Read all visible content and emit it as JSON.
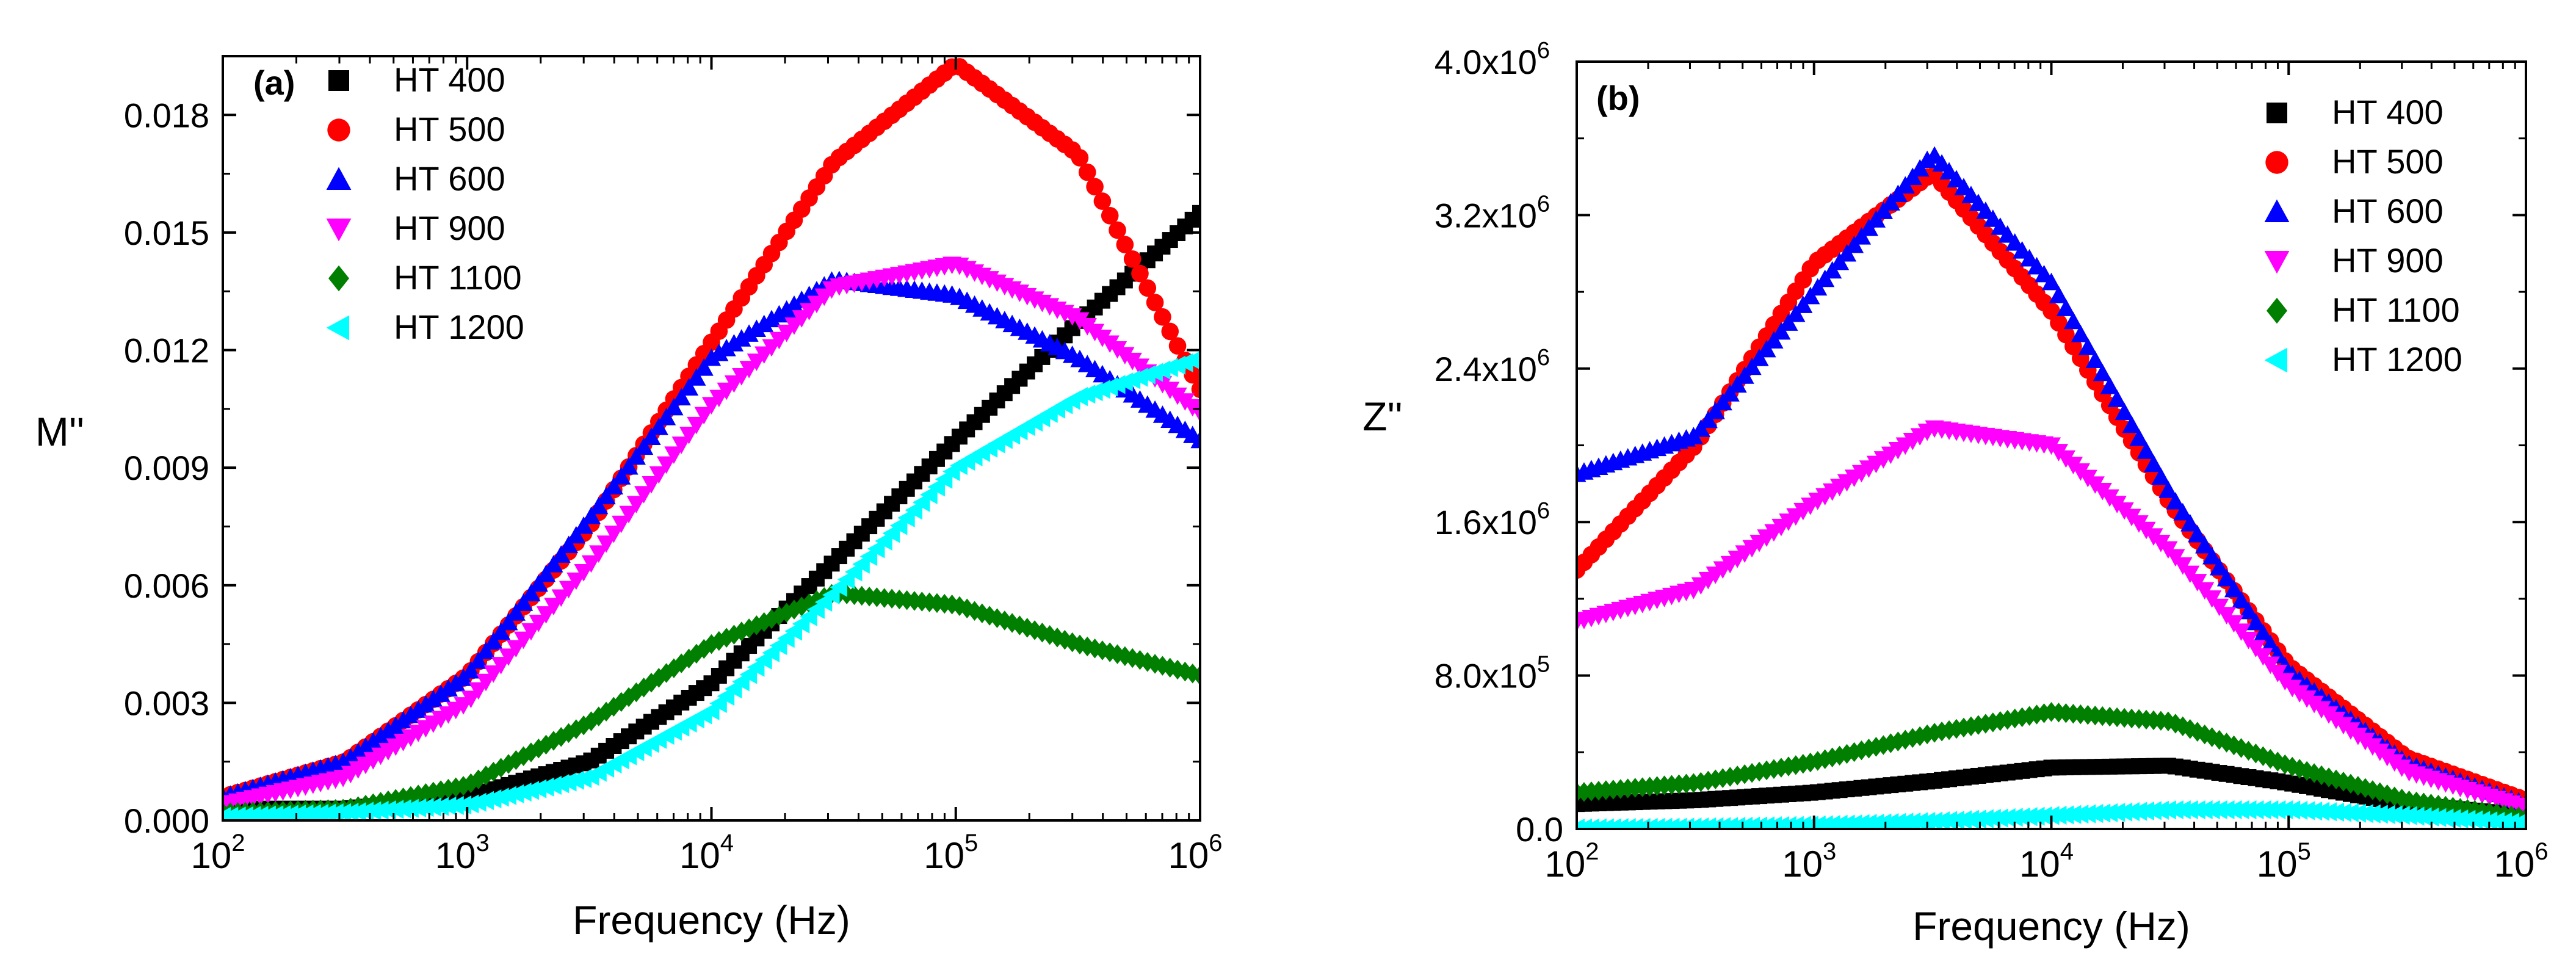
{
  "chart_data": [
    {
      "type": "scatter",
      "panel_label": "(a)",
      "xlabel": "Frequency (Hz)",
      "ylabel": "M''",
      "xscale": "log",
      "xlim": [
        100,
        1000000
      ],
      "ylim": [
        0,
        0.0195
      ],
      "x_ticks": [
        {
          "base": "10",
          "exp": "2",
          "value": 100
        },
        {
          "base": "10",
          "exp": "3",
          "value": 1000
        },
        {
          "base": "10",
          "exp": "4",
          "value": 10000
        },
        {
          "base": "10",
          "exp": "5",
          "value": 100000
        },
        {
          "base": "10",
          "exp": "6",
          "value": 1000000
        }
      ],
      "y_ticks": [
        {
          "label": "0.000",
          "value": 0
        },
        {
          "label": "0.003",
          "value": 0.003
        },
        {
          "label": "0.006",
          "value": 0.006
        },
        {
          "label": "0.009",
          "value": 0.009
        },
        {
          "label": "0.012",
          "value": 0.012
        },
        {
          "label": "0.015",
          "value": 0.015
        },
        {
          "label": "0.018",
          "value": 0.018
        }
      ],
      "legend_position": "top-left",
      "series": [
        {
          "name": "HT 400",
          "color": "#000000",
          "marker": "square",
          "x": [
            100,
            316,
            1000,
            3162,
            10000,
            31623,
            100000,
            316228,
            1000000
          ],
          "y": [
            0.0003,
            0.0003,
            0.0006,
            0.0015,
            0.0035,
            0.0066,
            0.0097,
            0.0127,
            0.0155
          ]
        },
        {
          "name": "HT 500",
          "color": "#ff0000",
          "marker": "circle",
          "x": [
            100,
            316,
            1000,
            3162,
            10000,
            31623,
            100000,
            316228,
            1000000
          ],
          "y": [
            0.0006,
            0.0015,
            0.0037,
            0.0075,
            0.0122,
            0.0168,
            0.0193,
            0.017,
            0.011
          ]
        },
        {
          "name": "HT 600",
          "color": "#0000ff",
          "marker": "triangle-up",
          "x": [
            100,
            316,
            1000,
            3162,
            10000,
            31623,
            100000,
            316228,
            1000000
          ],
          "y": [
            0.0006,
            0.0015,
            0.0037,
            0.0077,
            0.0118,
            0.0138,
            0.0134,
            0.0118,
            0.0097
          ]
        },
        {
          "name": "HT 900",
          "color": "#ff00ff",
          "marker": "triangle-down",
          "x": [
            100,
            316,
            1000,
            3162,
            10000,
            31623,
            100000,
            316228,
            1000000
          ],
          "y": [
            0.0004,
            0.0011,
            0.003,
            0.0065,
            0.0106,
            0.0136,
            0.0142,
            0.0128,
            0.0104
          ]
        },
        {
          "name": "HT 1100",
          "color": "#007f00",
          "marker": "diamond",
          "x": [
            100,
            316,
            1000,
            3162,
            10000,
            31623,
            100000,
            316228,
            1000000
          ],
          "y": [
            0.0002,
            0.0003,
            0.0009,
            0.0025,
            0.0045,
            0.0058,
            0.0055,
            0.0045,
            0.0037
          ]
        },
        {
          "name": "HT 1200",
          "color": "#00ffff",
          "marker": "triangle-left",
          "x": [
            100,
            316,
            1000,
            3162,
            10000,
            31623,
            100000,
            316228,
            1000000
          ],
          "y": [
            0.0001,
            0.0002,
            0.0004,
            0.0011,
            0.0028,
            0.0058,
            0.009,
            0.0108,
            0.0118
          ]
        }
      ]
    },
    {
      "type": "scatter",
      "panel_label": "(b)",
      "xlabel": "Frequency (Hz)",
      "ylabel": "Z''",
      "xscale": "log",
      "xlim": [
        100,
        1000000
      ],
      "ylim": [
        0,
        4000000
      ],
      "x_ticks": [
        {
          "base": "10",
          "exp": "2",
          "value": 100
        },
        {
          "base": "10",
          "exp": "3",
          "value": 1000
        },
        {
          "base": "10",
          "exp": "4",
          "value": 10000
        },
        {
          "base": "10",
          "exp": "5",
          "value": 100000
        },
        {
          "base": "10",
          "exp": "6",
          "value": 1000000
        }
      ],
      "y_ticks": [
        {
          "label": "0.0",
          "exp": "",
          "value": 0
        },
        {
          "label": "8.0x10",
          "exp": "5",
          "value": 800000
        },
        {
          "label": "1.6x10",
          "exp": "6",
          "value": 1600000
        },
        {
          "label": "2.4x10",
          "exp": "6",
          "value": 2400000
        },
        {
          "label": "3.2x10",
          "exp": "6",
          "value": 3200000
        },
        {
          "label": "4.0x10",
          "exp": "6",
          "value": 4000000
        }
      ],
      "legend_position": "top-right",
      "series": [
        {
          "name": "HT 400",
          "color": "#000000",
          "marker": "square",
          "x": [
            100,
            316,
            1000,
            3162,
            10000,
            31623,
            100000,
            316228,
            1000000
          ],
          "y": [
            130000,
            150000,
            190000,
            250000,
            320000,
            330000,
            240000,
            130000,
            70000
          ]
        },
        {
          "name": "HT 500",
          "color": "#ff0000",
          "marker": "circle",
          "x": [
            100,
            316,
            1000,
            3162,
            10000,
            31623,
            100000,
            316228,
            1000000
          ],
          "y": [
            1350000,
            2000000,
            2950000,
            3420000,
            2700000,
            1700000,
            850000,
            370000,
            150000
          ]
        },
        {
          "name": "HT 600",
          "color": "#0000ff",
          "marker": "triangle-up",
          "x": [
            100,
            316,
            1000,
            3162,
            10000,
            31623,
            100000,
            316228,
            1000000
          ],
          "y": [
            1850000,
            2050000,
            2800000,
            3520000,
            2850000,
            1750000,
            820000,
            340000,
            130000
          ]
        },
        {
          "name": "HT 900",
          "color": "#ff00ff",
          "marker": "triangle-down",
          "x": [
            100,
            316,
            1000,
            3162,
            10000,
            31623,
            100000,
            316228,
            1000000
          ],
          "y": [
            1080000,
            1250000,
            1700000,
            2090000,
            2000000,
            1450000,
            750000,
            300000,
            110000
          ]
        },
        {
          "name": "HT 1100",
          "color": "#007f00",
          "marker": "diamond",
          "x": [
            100,
            316,
            1000,
            3162,
            10000,
            31623,
            100000,
            316228,
            1000000
          ],
          "y": [
            190000,
            240000,
            350000,
            500000,
            610000,
            560000,
            330000,
            150000,
            60000
          ]
        },
        {
          "name": "HT 1200",
          "color": "#00ffff",
          "marker": "triangle-left",
          "x": [
            100,
            316,
            1000,
            3162,
            10000,
            31623,
            100000,
            316228,
            1000000
          ],
          "y": [
            5000,
            10000,
            20000,
            40000,
            70000,
            100000,
            100000,
            70000,
            30000
          ]
        }
      ]
    }
  ]
}
